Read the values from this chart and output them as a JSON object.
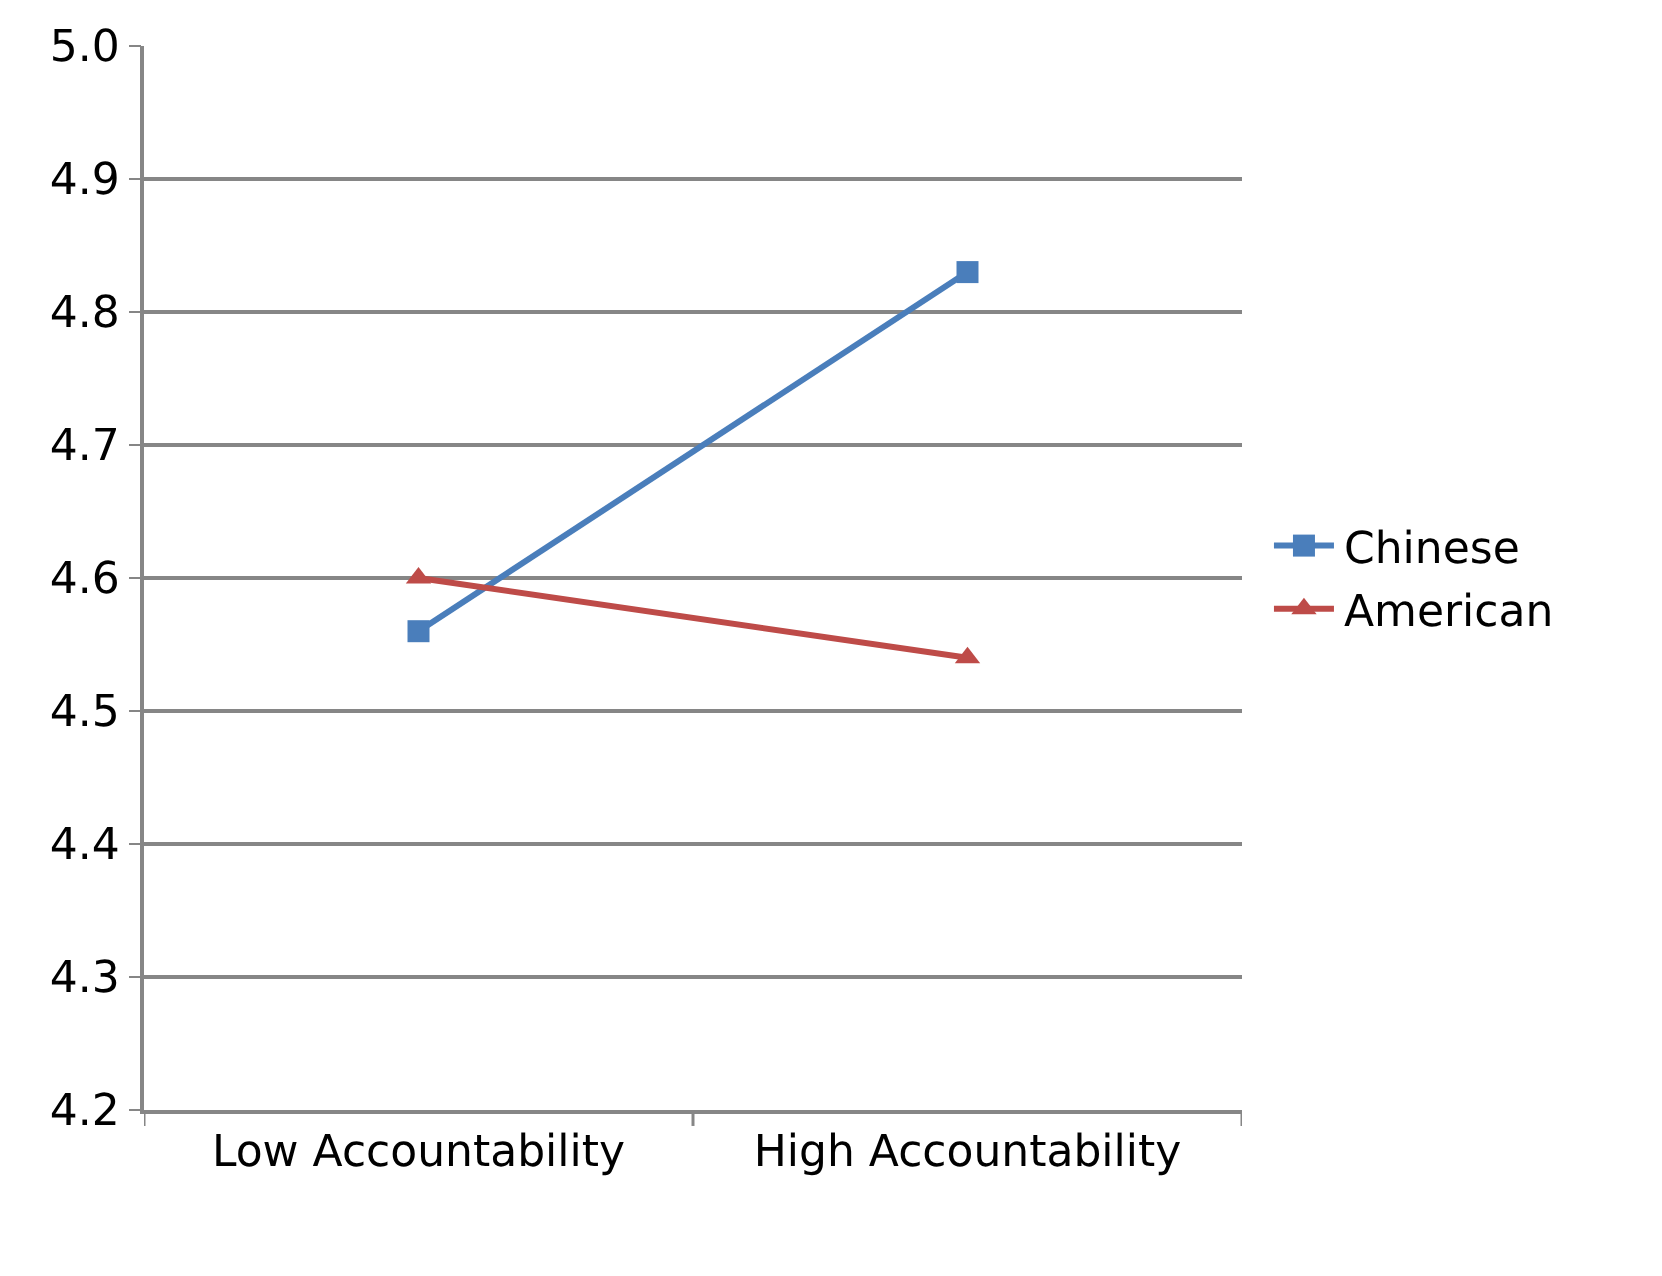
{
  "chart_data": {
    "type": "line",
    "categories": [
      "Low Accountability",
      "High Accountability"
    ],
    "series": [
      {
        "name": "Chinese",
        "color": "#4a7ebb",
        "values": [
          4.56,
          4.83
        ],
        "marker": "square"
      },
      {
        "name": "American",
        "color": "#be4b48",
        "values": [
          4.6,
          4.54
        ],
        "marker": "triangle"
      }
    ],
    "ylim": [
      4.2,
      5.0
    ],
    "yticks": [
      {
        "value": 4.2,
        "label": "4.2"
      },
      {
        "value": 4.3,
        "label": "4.3"
      },
      {
        "value": 4.4,
        "label": "4.4"
      },
      {
        "value": 4.5,
        "label": "4.5"
      },
      {
        "value": 4.6,
        "label": "4.6"
      },
      {
        "value": 4.7,
        "label": "4.7"
      },
      {
        "value": 4.8,
        "label": "4.8"
      },
      {
        "value": 4.9,
        "label": "4.9"
      },
      {
        "value": 5.0,
        "label": "5.0"
      }
    ],
    "grid": "y",
    "legend": "right",
    "line_style": "solid"
  }
}
